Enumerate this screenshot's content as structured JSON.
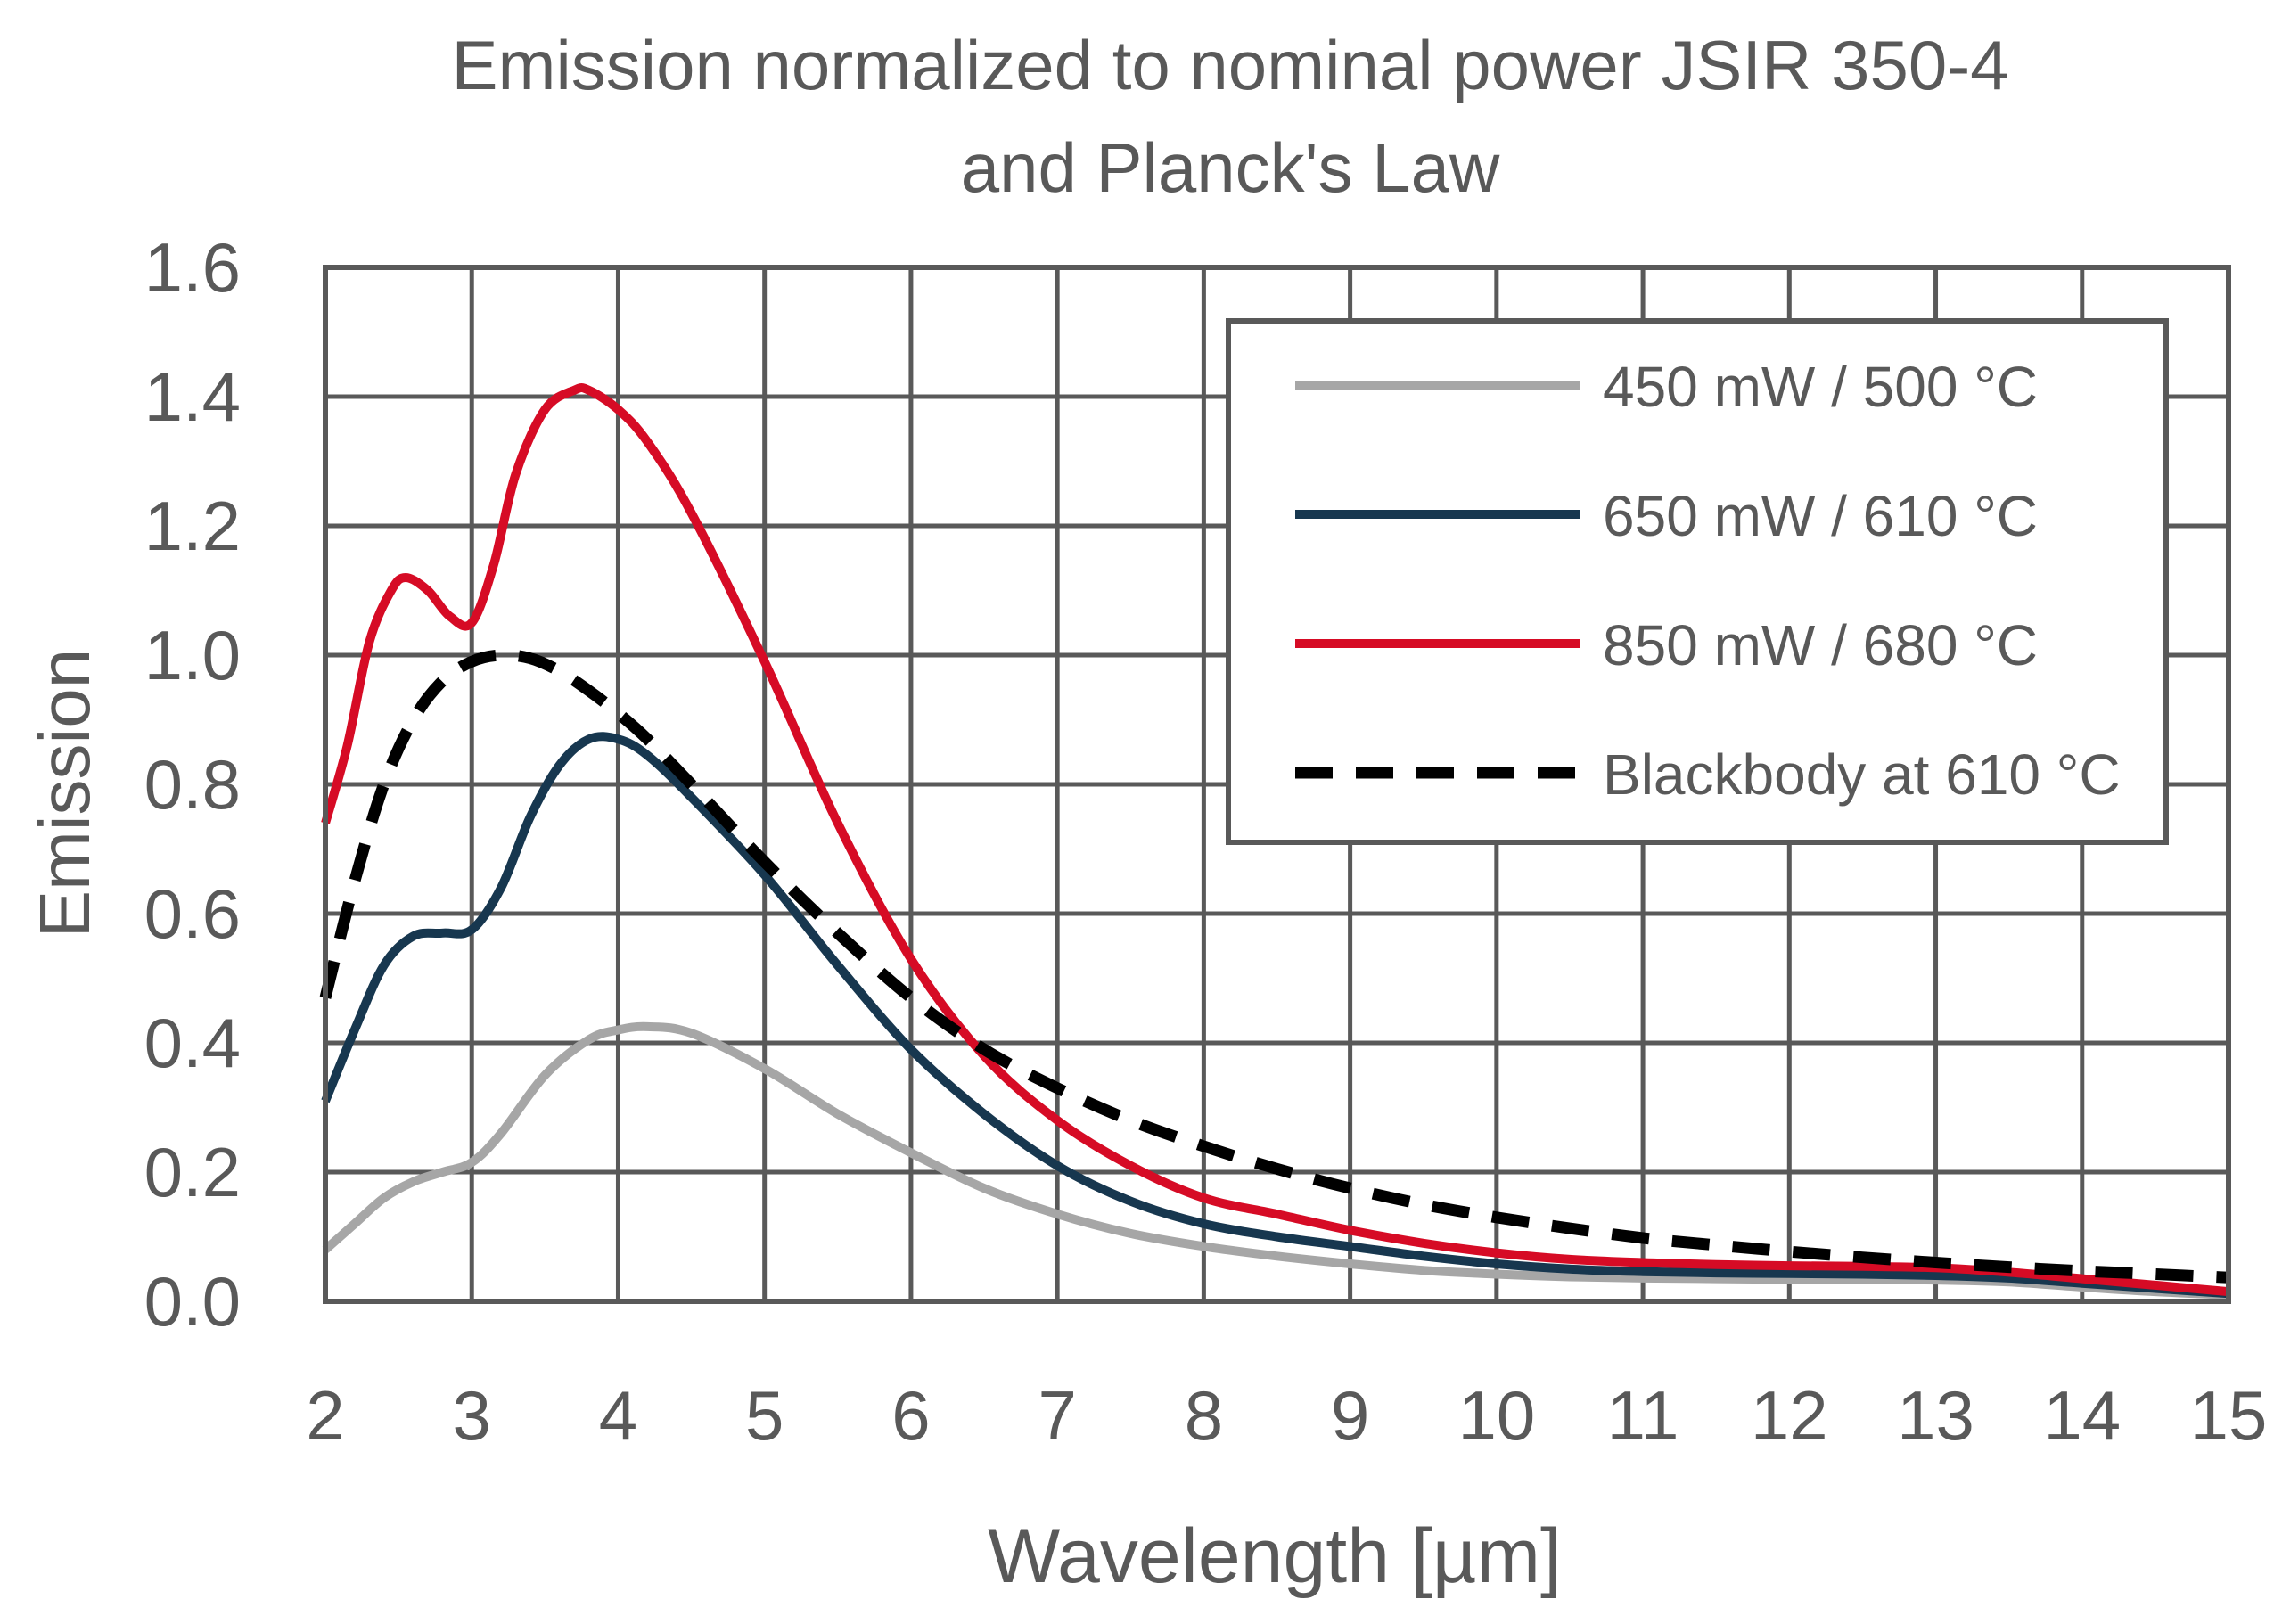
{
  "chart_data": {
    "type": "line",
    "title": "Emission normalized to nominal power JSIR 350-4\nand Planck's Law",
    "title_lines": [
      "Emission normalized to nominal power JSIR 350-4",
      "and Planck's Law"
    ],
    "xlabel": "Wavelength [µm]",
    "ylabel": "Emission",
    "xlim": [
      2,
      15
    ],
    "ylim": [
      0,
      1.6
    ],
    "x_ticks": [
      2,
      3,
      4,
      5,
      6,
      7,
      8,
      9,
      10,
      11,
      12,
      13,
      14,
      15
    ],
    "y_ticks": [
      "0.0",
      "0.2",
      "0.4",
      "0.6",
      "0.8",
      "1.0",
      "1.2",
      "1.4",
      "1.6"
    ],
    "grid": true,
    "legend_position": "top-right",
    "series": [
      {
        "name": "450 mW / 500 °C",
        "color": "#a6a6a6",
        "dash": "solid",
        "x": [
          2.0,
          2.2,
          2.4,
          2.6,
          2.8,
          3.0,
          3.2,
          3.5,
          3.8,
          4.0,
          4.2,
          4.5,
          5.0,
          5.5,
          6.0,
          6.5,
          7.0,
          7.5,
          8.0,
          8.5,
          9.0,
          9.5,
          10.0,
          10.5,
          11.0,
          11.5,
          12.0,
          12.5,
          13.0,
          13.5,
          14.0,
          14.5,
          15.0
        ],
        "y": [
          0.08,
          0.12,
          0.16,
          0.185,
          0.2,
          0.215,
          0.26,
          0.35,
          0.405,
          0.42,
          0.425,
          0.415,
          0.36,
          0.29,
          0.23,
          0.175,
          0.135,
          0.105,
          0.085,
          0.07,
          0.058,
          0.048,
          0.042,
          0.038,
          0.036,
          0.035,
          0.034,
          0.034,
          0.033,
          0.03,
          0.022,
          0.015,
          0.01
        ]
      },
      {
        "name": "650 mW / 610 °C",
        "color": "#17374f",
        "dash": "solid",
        "x": [
          2.0,
          2.2,
          2.4,
          2.6,
          2.8,
          3.0,
          3.2,
          3.4,
          3.6,
          3.8,
          4.0,
          4.2,
          4.5,
          5.0,
          5.5,
          6.0,
          6.5,
          7.0,
          7.5,
          8.0,
          8.5,
          9.0,
          9.5,
          10.0,
          10.5,
          11.0,
          11.5,
          12.0,
          12.5,
          13.0,
          13.5,
          14.0,
          14.5,
          15.0
        ],
        "y": [
          0.31,
          0.42,
          0.52,
          0.565,
          0.57,
          0.575,
          0.64,
          0.75,
          0.83,
          0.87,
          0.87,
          0.845,
          0.78,
          0.66,
          0.52,
          0.39,
          0.29,
          0.21,
          0.155,
          0.12,
          0.1,
          0.085,
          0.07,
          0.058,
          0.05,
          0.046,
          0.044,
          0.043,
          0.042,
          0.04,
          0.036,
          0.028,
          0.02,
          0.012
        ]
      },
      {
        "name": "850 mW / 680 °C",
        "color": "#d60b25",
        "dash": "solid",
        "x": [
          2.0,
          2.15,
          2.3,
          2.45,
          2.55,
          2.7,
          2.85,
          3.0,
          3.15,
          3.3,
          3.5,
          3.7,
          3.8,
          4.0,
          4.2,
          4.5,
          5.0,
          5.5,
          6.0,
          6.5,
          7.0,
          7.5,
          8.0,
          8.5,
          9.0,
          9.5,
          10.0,
          10.5,
          11.0,
          11.5,
          12.0,
          12.5,
          13.0,
          13.5,
          14.0,
          14.5,
          15.0
        ],
        "y": [
          0.74,
          0.86,
          1.02,
          1.1,
          1.12,
          1.1,
          1.06,
          1.05,
          1.14,
          1.28,
          1.38,
          1.41,
          1.41,
          1.38,
          1.33,
          1.22,
          0.99,
          0.74,
          0.53,
          0.38,
          0.28,
          0.21,
          0.16,
          0.135,
          0.11,
          0.09,
          0.075,
          0.065,
          0.06,
          0.057,
          0.055,
          0.054,
          0.052,
          0.045,
          0.035,
          0.025,
          0.015
        ]
      },
      {
        "name": "Blackbody at 610 °C",
        "color": "#000000",
        "dash": "dashed",
        "x": [
          2.0,
          2.2,
          2.4,
          2.6,
          2.8,
          3.0,
          3.2,
          3.4,
          3.6,
          3.8,
          4.0,
          4.2,
          4.5,
          5.0,
          5.5,
          6.0,
          6.5,
          7.0,
          7.5,
          8.0,
          8.5,
          9.0,
          9.5,
          10.0,
          10.5,
          11.0,
          11.5,
          12.0,
          12.5,
          13.0,
          13.5,
          14.0,
          14.5,
          15.0
        ],
        "y": [
          0.47,
          0.65,
          0.8,
          0.9,
          0.96,
          0.99,
          1.0,
          0.995,
          0.975,
          0.945,
          0.91,
          0.87,
          0.8,
          0.68,
          0.57,
          0.47,
          0.39,
          0.33,
          0.28,
          0.24,
          0.205,
          0.175,
          0.15,
          0.13,
          0.113,
          0.098,
          0.087,
          0.077,
          0.068,
          0.06,
          0.053,
          0.047,
          0.042,
          0.037
        ]
      }
    ]
  }
}
